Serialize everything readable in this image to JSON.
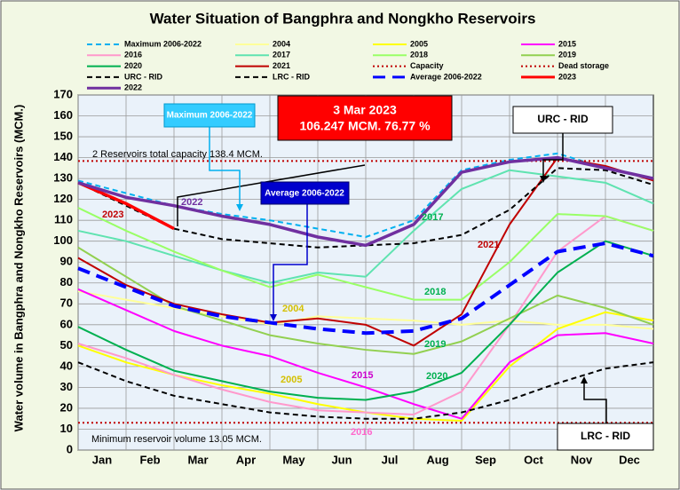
{
  "chart_data": {
    "type": "line",
    "title": "Water Situation of Bangphra and Nongkho Reservoirs",
    "y_label": "Water volume in Bangphra and Nongkho Reservoirs (MCM.)",
    "categories": [
      "Jan",
      "Feb",
      "Mar",
      "Apr",
      "May",
      "Jun",
      "Jul",
      "Aug",
      "Sep",
      "Oct",
      "Nov",
      "Dec"
    ],
    "x": [
      0,
      1,
      2,
      3,
      4,
      5,
      6,
      7,
      8,
      9,
      10,
      11,
      12
    ],
    "xlim": [
      0,
      12
    ],
    "ylim": [
      0,
      170
    ],
    "yticks": [
      0,
      10,
      20,
      30,
      40,
      50,
      60,
      70,
      80,
      90,
      100,
      110,
      120,
      130,
      140,
      150,
      160,
      170
    ],
    "grid": true,
    "series": [
      {
        "name": "Maximum 2006-2022",
        "color": "#00b0f0",
        "style": "dashed",
        "values": [
          129,
          123,
          117,
          113,
          110,
          106,
          102,
          110,
          134,
          139,
          142,
          135,
          130
        ]
      },
      {
        "name": "2004",
        "color": "#ffff99",
        "style": "solid",
        "values": [
          76,
          72,
          68,
          64,
          60,
          64,
          63,
          62,
          60,
          62,
          60,
          60,
          58
        ]
      },
      {
        "name": "2005",
        "color": "#ffff00",
        "style": "solid",
        "values": [
          50,
          42,
          36,
          31,
          27,
          22,
          18,
          15,
          14,
          40,
          58,
          66,
          62
        ]
      },
      {
        "name": "2015",
        "color": "#ff00ff",
        "style": "solid",
        "values": [
          77,
          67,
          57,
          50,
          45,
          37,
          30,
          22,
          15,
          42,
          55,
          56,
          51
        ]
      },
      {
        "name": "2016",
        "color": "#ff99cc",
        "style": "solid",
        "values": [
          51,
          44,
          36,
          29,
          23,
          19,
          18,
          17,
          28,
          60,
          95,
          112,
          105
        ]
      },
      {
        "name": "2017",
        "color": "#5fe3b0",
        "style": "solid",
        "values": [
          105,
          100,
          93,
          86,
          80,
          85,
          83,
          105,
          125,
          134,
          131,
          128,
          118
        ]
      },
      {
        "name": "2018",
        "color": "#99ff66",
        "style": "solid",
        "values": [
          116,
          105,
          95,
          86,
          78,
          84,
          78,
          72,
          72,
          90,
          113,
          112,
          105
        ]
      },
      {
        "name": "2019",
        "color": "#92d050",
        "style": "solid",
        "values": [
          97,
          83,
          69,
          62,
          55,
          51,
          48,
          46,
          52,
          63,
          74,
          68,
          60
        ]
      },
      {
        "name": "2020",
        "color": "#00b050",
        "style": "solid",
        "values": [
          59,
          48,
          38,
          33,
          28,
          25,
          24,
          28,
          37,
          60,
          85,
          100,
          93
        ]
      },
      {
        "name": "2021",
        "color": "#c00000",
        "style": "solid",
        "values": [
          92,
          79,
          70,
          65,
          61,
          63,
          60,
          50,
          65,
          108,
          140,
          136,
          129
        ]
      },
      {
        "name": "Capacity",
        "color": "#c00000",
        "style": "dotted",
        "value": 138.4
      },
      {
        "name": "Dead storage",
        "color": "#c00000",
        "style": "dotted",
        "value": 13.05
      },
      {
        "name": "URC - RID",
        "color": "#000000",
        "style": "dashed",
        "values": [
          128,
          117,
          106,
          101,
          99,
          97,
          98,
          99,
          103,
          115,
          135,
          134,
          127
        ]
      },
      {
        "name": "LRC - RID",
        "color": "#000000",
        "style": "dashed",
        "values": [
          42,
          33,
          26,
          22,
          18,
          16,
          15,
          15,
          18,
          24,
          32,
          39,
          42
        ]
      },
      {
        "name": "Average 2006-2022",
        "color": "#0000ff",
        "style": "bold-dashed",
        "values": [
          87,
          78,
          69,
          64,
          61,
          58,
          56,
          57,
          63,
          79,
          95,
          99,
          93
        ]
      },
      {
        "name": "2023",
        "color": "#ff0000",
        "style": "bold",
        "values": [
          128,
          118,
          106,
          null,
          null,
          null,
          null,
          null,
          null,
          null,
          null,
          null,
          null
        ]
      },
      {
        "name": "2022",
        "color": "#7030a0",
        "style": "bold",
        "values": [
          128,
          121,
          117,
          112,
          108,
          102,
          98,
          108,
          133,
          138,
          140,
          135,
          130
        ]
      }
    ],
    "callout": {
      "date": "3 Mar 2023",
      "text": "106.247 MCM. 76.77 %"
    },
    "boxes": [
      "Maximum 2006-2022",
      "Average 2006-2022",
      "URC - RID",
      "LRC - RID"
    ],
    "notes": [
      "2 Reservoirs total capacity 138.4 MCM.",
      "Minimum reservoir volume 13.05 MCM."
    ],
    "annotations": [
      "2023",
      "2022",
      "2017",
      "2021",
      "2018",
      "2004",
      "2019",
      "2015",
      "2020",
      "2005",
      "2016"
    ]
  }
}
